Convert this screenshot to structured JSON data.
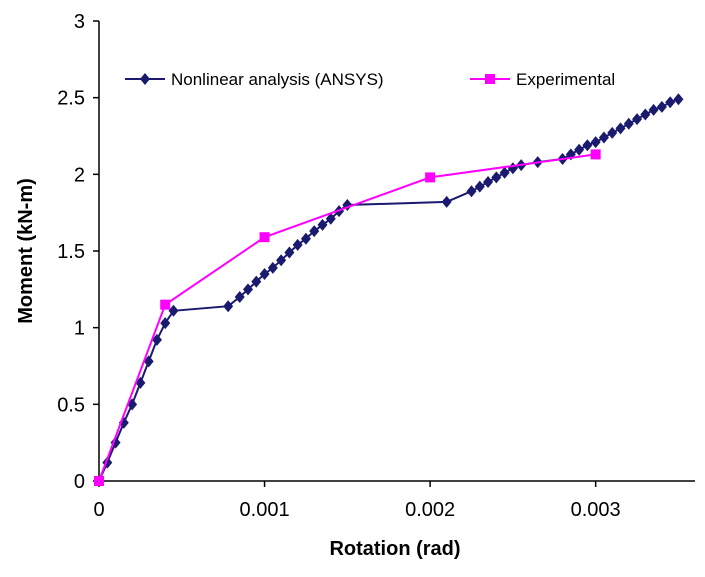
{
  "chart_data": {
    "type": "line",
    "x_label": "Rotation (rad)",
    "y_label": "Moment (kN-m)",
    "xlim": [
      0,
      0.0036
    ],
    "xticks": [
      0,
      0.001,
      0.002,
      0.003
    ],
    "ylim": [
      0,
      3
    ],
    "yticks": [
      0,
      0.5,
      1,
      1.5,
      2,
      2.5,
      3
    ],
    "grid": false,
    "legend": "top",
    "series": [
      {
        "name": "Nonlinear analysis (ANSYS)",
        "color": "#1a1a6e",
        "marker": "diamond",
        "x": [
          0,
          5e-05,
          0.0001,
          0.00015,
          0.0002,
          0.00025,
          0.0003,
          0.00035,
          0.0004,
          0.00045,
          0.00078,
          0.00085,
          0.0009,
          0.00095,
          0.001,
          0.00105,
          0.0011,
          0.00115,
          0.0012,
          0.00125,
          0.0013,
          0.00135,
          0.0014,
          0.00145,
          0.0015,
          0.0021,
          0.00225,
          0.0023,
          0.00235,
          0.0024,
          0.00245,
          0.0025,
          0.00255,
          0.00265,
          0.0028,
          0.00285,
          0.0029,
          0.00295,
          0.003,
          0.00305,
          0.0031,
          0.00315,
          0.0032,
          0.00325,
          0.0033,
          0.00335,
          0.0034,
          0.00345,
          0.0035
        ],
        "values": [
          0,
          0.12,
          0.25,
          0.38,
          0.5,
          0.64,
          0.78,
          0.92,
          1.03,
          1.11,
          1.14,
          1.2,
          1.25,
          1.3,
          1.35,
          1.39,
          1.44,
          1.49,
          1.54,
          1.58,
          1.63,
          1.67,
          1.71,
          1.76,
          1.8,
          1.82,
          1.89,
          1.92,
          1.95,
          1.98,
          2.01,
          2.04,
          2.06,
          2.08,
          2.1,
          2.13,
          2.16,
          2.19,
          2.21,
          2.24,
          2.27,
          2.3,
          2.33,
          2.36,
          2.39,
          2.42,
          2.44,
          2.47,
          2.49
        ]
      },
      {
        "name": "Experimental",
        "color": "#ff00ff",
        "marker": "square",
        "x": [
          0,
          0.0004,
          0.001,
          0.002,
          0.003
        ],
        "values": [
          0,
          1.15,
          1.59,
          1.98,
          2.13
        ]
      }
    ]
  }
}
